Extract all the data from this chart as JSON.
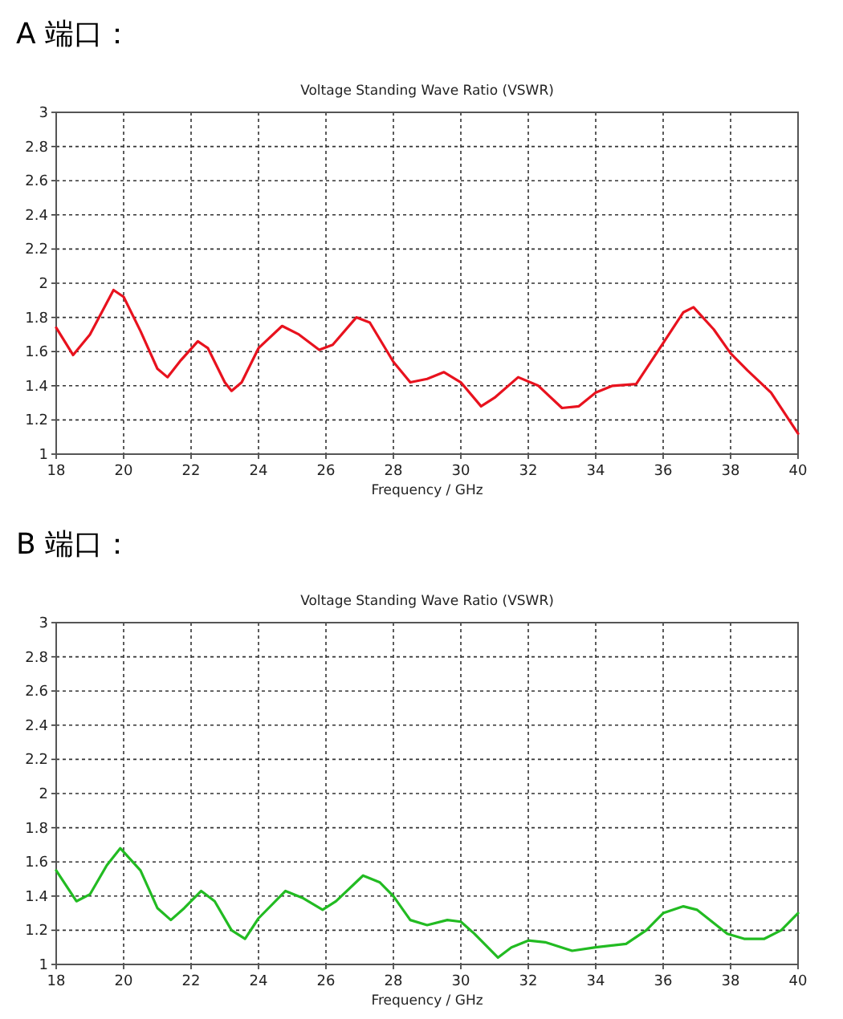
{
  "chart_data": [
    {
      "type": "line",
      "title": "A 端口：",
      "subtitle": "Voltage Standing Wave Ratio (VSWR)",
      "xlabel": "Frequency / GHz",
      "xlim": [
        18,
        40
      ],
      "ylim": [
        1,
        3
      ],
      "xticks": [
        18,
        20,
        22,
        24,
        26,
        28,
        30,
        32,
        34,
        36,
        38,
        40
      ],
      "yticks": [
        1,
        1.2,
        1.4,
        1.6,
        1.8,
        2,
        2.2,
        2.4,
        2.6,
        2.8,
        3
      ],
      "grid": true,
      "line_style": "solid",
      "series": [
        {
          "color": "#e8121e",
          "x": [
            18,
            18.5,
            19,
            19.7,
            20,
            20.5,
            21,
            21.3,
            21.7,
            22.2,
            22.5,
            23,
            23.2,
            23.5,
            24,
            24.7,
            25.2,
            25.8,
            26.2,
            26.9,
            27.3,
            28,
            28.5,
            29,
            29.5,
            30,
            30.6,
            31,
            31.7,
            32.3,
            33,
            33.5,
            34,
            34.5,
            35.2,
            36,
            36.6,
            36.9,
            37.5,
            38,
            38.5,
            39.2,
            40
          ],
          "values": [
            1.74,
            1.58,
            1.7,
            1.96,
            1.92,
            1.72,
            1.5,
            1.45,
            1.55,
            1.66,
            1.62,
            1.42,
            1.37,
            1.42,
            1.62,
            1.75,
            1.7,
            1.61,
            1.64,
            1.8,
            1.77,
            1.54,
            1.42,
            1.44,
            1.48,
            1.42,
            1.28,
            1.33,
            1.45,
            1.4,
            1.27,
            1.28,
            1.36,
            1.4,
            1.41,
            1.65,
            1.83,
            1.86,
            1.73,
            1.59,
            1.49,
            1.36,
            1.12
          ]
        }
      ]
    },
    {
      "type": "line",
      "title": "B 端口：",
      "subtitle": "Voltage Standing Wave Ratio (VSWR)",
      "xlabel": "Frequency / GHz",
      "xlim": [
        18,
        40
      ],
      "ylim": [
        1,
        3
      ],
      "xticks": [
        18,
        20,
        22,
        24,
        26,
        28,
        30,
        32,
        34,
        36,
        38,
        40
      ],
      "yticks": [
        1,
        1.2,
        1.4,
        1.6,
        1.8,
        2,
        2.2,
        2.4,
        2.6,
        2.8,
        3
      ],
      "grid": true,
      "line_style": "solid",
      "series": [
        {
          "color": "#22bb22",
          "x": [
            18,
            18.6,
            19,
            19.5,
            19.9,
            20.5,
            21,
            21.4,
            21.8,
            22.3,
            22.7,
            23.2,
            23.6,
            24,
            24.8,
            25.3,
            25.9,
            26.3,
            27.1,
            27.6,
            28,
            28.5,
            29,
            29.6,
            30,
            30.4,
            31.1,
            31.5,
            32,
            32.5,
            33.3,
            34,
            34.9,
            35.5,
            36,
            36.6,
            37,
            37.9,
            38.4,
            39,
            39.5,
            40
          ],
          "values": [
            1.55,
            1.37,
            1.41,
            1.58,
            1.68,
            1.55,
            1.33,
            1.26,
            1.33,
            1.43,
            1.37,
            1.2,
            1.15,
            1.27,
            1.43,
            1.39,
            1.32,
            1.37,
            1.52,
            1.48,
            1.4,
            1.26,
            1.23,
            1.26,
            1.25,
            1.18,
            1.04,
            1.1,
            1.14,
            1.13,
            1.08,
            1.1,
            1.12,
            1.2,
            1.3,
            1.34,
            1.32,
            1.18,
            1.15,
            1.15,
            1.2,
            1.3
          ]
        }
      ]
    }
  ]
}
